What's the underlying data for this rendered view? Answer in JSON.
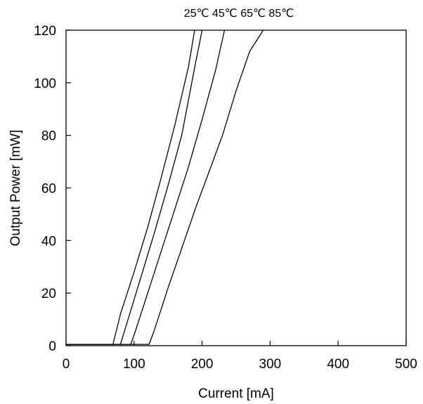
{
  "chart_data": {
    "type": "line",
    "title": "",
    "legend_text": "25℃ 45℃ 65℃ 85℃",
    "xlabel": "Current  [mA]",
    "ylabel": "Output Power  [mW]",
    "xlim": [
      0,
      500
    ],
    "ylim": [
      0,
      120
    ],
    "x_ticks": [
      0,
      100,
      200,
      300,
      400,
      500
    ],
    "y_ticks": [
      0,
      20,
      40,
      60,
      80,
      100,
      120
    ],
    "x_tick_labels": [
      "0",
      "100",
      "200",
      "300",
      "400",
      "500"
    ],
    "y_tick_labels": [
      "0",
      "20",
      "40",
      "60",
      "80",
      "100",
      "120"
    ],
    "grid": false,
    "legend_position": "top",
    "line_color": "#000000",
    "series": [
      {
        "name": "25℃",
        "x": [
          0,
          60,
          69,
          80,
          100,
          120,
          140,
          160,
          180,
          189
        ],
        "y": [
          0.5,
          0.5,
          0.5,
          12,
          28,
          45,
          64,
          84,
          106,
          120
        ]
      },
      {
        "name": "45℃",
        "x": [
          0,
          70,
          80,
          90,
          110,
          130,
          150,
          170,
          190,
          200
        ],
        "y": [
          0.5,
          0.5,
          0.5,
          9,
          26,
          43,
          61,
          80,
          107,
          120
        ]
      },
      {
        "name": "65℃",
        "x": [
          0,
          85,
          95,
          100,
          120,
          140,
          160,
          180,
          200,
          220,
          233
        ],
        "y": [
          0.5,
          0.5,
          0.5,
          4,
          20,
          36,
          52,
          68,
          86,
          105,
          120
        ]
      },
      {
        "name": "85℃",
        "x": [
          0,
          110,
          122,
          130,
          150,
          170,
          190,
          210,
          230,
          250,
          270,
          290
        ],
        "y": [
          0.5,
          0.5,
          0.5,
          6,
          22,
          37,
          52,
          66,
          80,
          97,
          112,
          120
        ]
      }
    ]
  }
}
